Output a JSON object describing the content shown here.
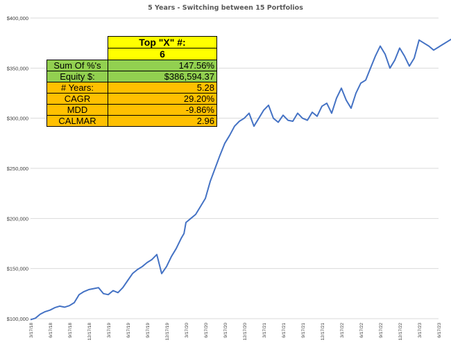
{
  "chart_data": {
    "type": "line",
    "title": "5 Years - Switching between 15 Portfolios",
    "xlabel": "",
    "ylabel": "",
    "ylim": [
      100000,
      400000
    ],
    "grid": true,
    "legend": "none",
    "yticks": [
      "$100,000",
      "$150,000",
      "$200,000",
      "$250,000",
      "$300,000",
      "$350,000",
      "$400,000"
    ],
    "xticks": [
      "3/17/18",
      "6/17/18",
      "9/17/18",
      "12/17/18",
      "3/17/19",
      "6/17/19",
      "9/17/19",
      "12/17/19",
      "3/17/20",
      "6/17/20",
      "9/17/20",
      "12/17/20",
      "3/17/21",
      "6/17/21",
      "9/17/21",
      "12/17/21",
      "3/17/22",
      "6/17/22",
      "9/17/22",
      "12/17/22",
      "3/17/23",
      "6/17/23"
    ],
    "line_color": "#4472c4",
    "series": [
      {
        "x": [
          0,
          0.25,
          0.5,
          0.75,
          1,
          1.25,
          1.5,
          1.75,
          2,
          2.25,
          2.5,
          2.75,
          3,
          3.25,
          3.5,
          3.75,
          4,
          4.25,
          4.5,
          4.75,
          5,
          5.25,
          5.5,
          5.75,
          6,
          6.25,
          6.5,
          6.75,
          7,
          7.25,
          7.5,
          7.75,
          7.9,
          8,
          8.25,
          8.5,
          8.75,
          9,
          9.25,
          9.5,
          9.75,
          10,
          10.25,
          10.5,
          10.75,
          11,
          11.25,
          11.5,
          11.75,
          12,
          12.25,
          12.5,
          12.75,
          13,
          13.25,
          13.5,
          13.75,
          14,
          14.25,
          14.5,
          14.75,
          15,
          15.25,
          15.5,
          15.75,
          16,
          16.25,
          16.5,
          16.75,
          17,
          17.25,
          17.5,
          17.75,
          18,
          18.25,
          18.5,
          18.75,
          19,
          19.25,
          19.5,
          19.75,
          20,
          20.25,
          20.5,
          20.75,
          21,
          21.25,
          21.5,
          21.75,
          22
        ],
        "values": [
          99000,
          100500,
          104500,
          107000,
          108500,
          111000,
          112500,
          111500,
          113000,
          116000,
          124000,
          127000,
          129000,
          130000,
          131000,
          125000,
          124000,
          128000,
          126000,
          131000,
          138000,
          145000,
          149000,
          152000,
          156000,
          159000,
          164000,
          145000,
          152000,
          162000,
          170000,
          180000,
          185000,
          196000,
          200000,
          204000,
          212000,
          220000,
          237000,
          250000,
          263000,
          275000,
          283000,
          292000,
          297000,
          300000,
          305000,
          292000,
          300000,
          308000,
          313000,
          300000,
          296000,
          303000,
          298000,
          297000,
          305000,
          300000,
          298000,
          306000,
          302000,
          312000,
          315000,
          305000,
          320000,
          330000,
          318000,
          310000,
          325000,
          335000,
          338000,
          350000,
          362000,
          372000,
          364000,
          350000,
          358000,
          370000,
          362000,
          352000,
          360000,
          378000,
          375000,
          372000,
          368000,
          371000,
          374000,
          377000,
          380000,
          375000
        ]
      }
    ]
  },
  "table": {
    "header_label": "Top \"X\" #:",
    "header_value": "6",
    "rows": [
      {
        "label": "Sum Of %'s",
        "value": "147.56%",
        "color": "green"
      },
      {
        "label": "Equity $:",
        "value": "$386,594.37",
        "color": "green"
      },
      {
        "label": "# Years:",
        "value": "5.28",
        "color": "orange"
      },
      {
        "label": "CAGR",
        "value": "29.20%",
        "color": "orange"
      },
      {
        "label": "MDD",
        "value": "-9.86%",
        "color": "orange"
      },
      {
        "label": "CALMAR",
        "value": "2.96",
        "color": "orange"
      }
    ]
  }
}
